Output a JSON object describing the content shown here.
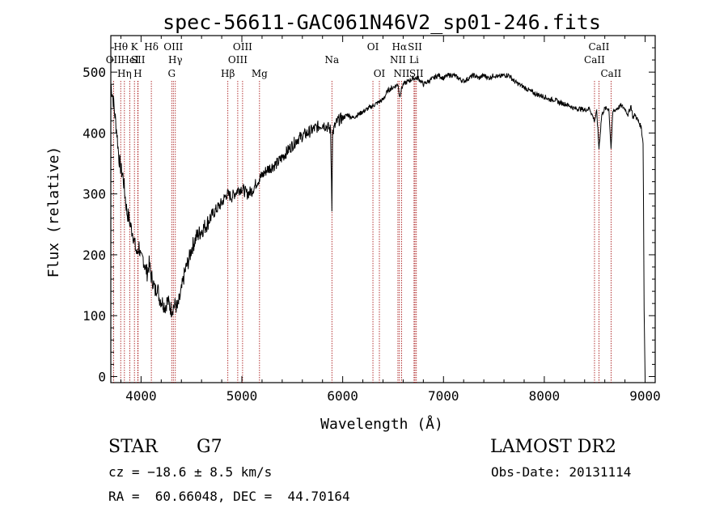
{
  "chart_data": {
    "type": "line",
    "title": "spec-56611-GAC061N46V2_sp01-246.fits",
    "xlabel": "Wavelength (Å)",
    "ylabel": "Flux (relative)",
    "xlim": [
      3700,
      9100
    ],
    "ylim": [
      -10,
      560
    ],
    "x_ticks": [
      4000,
      5000,
      6000,
      7000,
      8000,
      9000
    ],
    "y_ticks": [
      0,
      100,
      200,
      300,
      400,
      500
    ],
    "grid": false,
    "series": [
      {
        "x": [
          3700,
          3720,
          3740,
          3760,
          3780,
          3800,
          3820,
          3840,
          3860,
          3880,
          3900,
          3920,
          3940,
          3960,
          3980,
          4000,
          4020,
          4040,
          4060,
          4080,
          4100,
          4120,
          4140,
          4160,
          4180,
          4200,
          4220,
          4240,
          4260,
          4280,
          4300,
          4320,
          4340,
          4360,
          4380,
          4400,
          4420,
          4440,
          4460,
          4480,
          4500,
          4550,
          4600,
          4650,
          4700,
          4750,
          4800,
          4850,
          4900,
          4950,
          5000,
          5050,
          5100,
          5150,
          5200,
          5250,
          5300,
          5350,
          5400,
          5450,
          5500,
          5550,
          5600,
          5650,
          5700,
          5750,
          5800,
          5850,
          5880,
          5893,
          5900,
          5920,
          5950,
          6000,
          6050,
          6100,
          6150,
          6200,
          6250,
          6300,
          6350,
          6400,
          6450,
          6500,
          6550,
          6563,
          6580,
          6600,
          6650,
          6700,
          6750,
          6800,
          6850,
          6900,
          6950,
          7000,
          7050,
          7100,
          7150,
          7200,
          7250,
          7300,
          7350,
          7400,
          7450,
          7500,
          7550,
          7600,
          7650,
          7700,
          7750,
          7800,
          7850,
          7900,
          7950,
          8000,
          8050,
          8100,
          8150,
          8200,
          8250,
          8300,
          8350,
          8400,
          8450,
          8498,
          8520,
          8542,
          8570,
          8600,
          8640,
          8662,
          8680,
          8720,
          8760,
          8800,
          8830,
          8860,
          8880,
          8900,
          8930,
          8960,
          8980,
          8990,
          9000
        ],
        "y": [
          480,
          460,
          430,
          400,
          360,
          340,
          330,
          300,
          270,
          260,
          245,
          235,
          215,
          200,
          215,
          190,
          195,
          180,
          170,
          185,
          165,
          155,
          140,
          150,
          130,
          125,
          120,
          115,
          125,
          118,
          110,
          115,
          118,
          112,
          125,
          140,
          160,
          175,
          185,
          195,
          210,
          230,
          240,
          250,
          265,
          275,
          285,
          300,
          295,
          305,
          310,
          300,
          305,
          320,
          330,
          340,
          345,
          350,
          360,
          370,
          380,
          390,
          395,
          400,
          405,
          410,
          415,
          410,
          405,
          280,
          400,
          410,
          420,
          425,
          430,
          425,
          430,
          435,
          440,
          445,
          450,
          455,
          470,
          475,
          480,
          460,
          470,
          480,
          485,
          490,
          490,
          480,
          485,
          490,
          495,
          490,
          495,
          495,
          490,
          485,
          490,
          495,
          490,
          495,
          490,
          495,
          492,
          495,
          495,
          485,
          480,
          475,
          470,
          465,
          462,
          460,
          455,
          455,
          450,
          448,
          445,
          440,
          440,
          438,
          440,
          420,
          435,
          375,
          430,
          440,
          440,
          375,
          435,
          440,
          445,
          440,
          430,
          445,
          425,
          430,
          420,
          410,
          385,
          110,
          0
        ]
      }
    ],
    "spectral_lines": [
      {
        "name": "OII",
        "wl": 3727,
        "row": 2
      },
      {
        "name": "Hθ",
        "wl": 3798,
        "row": 1
      },
      {
        "name": "Hη",
        "wl": 3835,
        "row": 3
      },
      {
        "name": "HeI",
        "wl": 3889,
        "row": 2
      },
      {
        "name": "K",
        "wl": 3934,
        "row": 1
      },
      {
        "name": "SII",
        "wl": 3970,
        "row": 2
      },
      {
        "name": "H",
        "wl": 3968,
        "row": 3
      },
      {
        "name": "Hδ",
        "wl": 4102,
        "row": 1
      },
      {
        "name": "OIII",
        "wl": 4320,
        "row": 1
      },
      {
        "name": "Hγ",
        "wl": 4340,
        "row": 2
      },
      {
        "name": "G",
        "wl": 4304,
        "row": 3
      },
      {
        "name": "Hβ",
        "wl": 4861,
        "row": 3
      },
      {
        "name": "OIII",
        "wl": 4959,
        "row": 2
      },
      {
        "name": "OIII",
        "wl": 5007,
        "row": 1
      },
      {
        "name": "Mg",
        "wl": 5175,
        "row": 3
      },
      {
        "name": "Na",
        "wl": 5893,
        "row": 2
      },
      {
        "name": "OI",
        "wl": 6300,
        "row": 1
      },
      {
        "name": "OI",
        "wl": 6364,
        "row": 3
      },
      {
        "name": "Hα",
        "wl": 6563,
        "row": 1
      },
      {
        "name": "NII",
        "wl": 6548,
        "row": 2
      },
      {
        "name": "NII",
        "wl": 6584,
        "row": 3
      },
      {
        "name": "SII",
        "wl": 6717,
        "row": 1
      },
      {
        "name": "Li",
        "wl": 6708,
        "row": 2
      },
      {
        "name": "SII",
        "wl": 6731,
        "row": 3
      },
      {
        "name": "CaII",
        "wl": 8498,
        "row": 2
      },
      {
        "name": "CaII",
        "wl": 8542,
        "row": 1
      },
      {
        "name": "CaII",
        "wl": 8662,
        "row": 3
      }
    ],
    "line_marker_color": "#a00000"
  },
  "info": {
    "class_label": "STAR",
    "subclass": "G7",
    "survey": "LAMOST DR2",
    "cz": "cz = −18.6 ± 8.5 km/s",
    "obs_date": "Obs-Date: 20131114",
    "coords": "RA =  60.66048, DEC =  44.70164"
  }
}
